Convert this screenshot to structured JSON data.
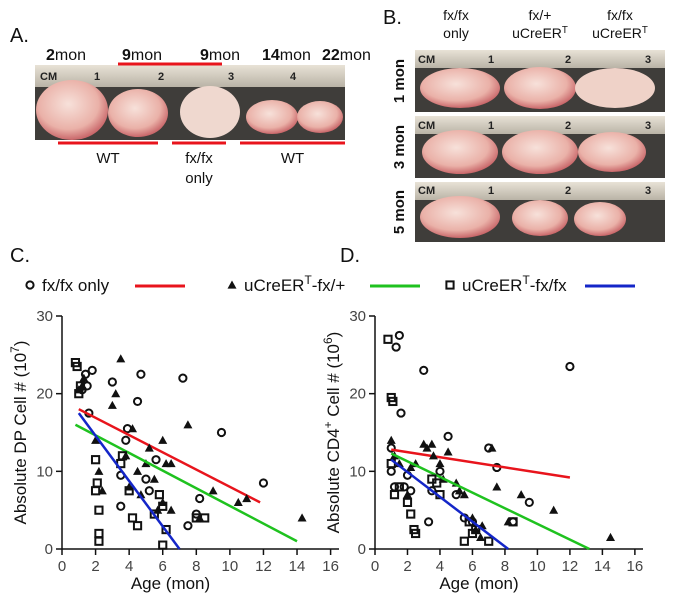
{
  "panel_a": {
    "label": "A.",
    "ages": [
      {
        "num": "2",
        "unit": "mon"
      },
      {
        "num": "9",
        "unit": "mon"
      },
      {
        "num": "9",
        "unit": "mon"
      },
      {
        "num": "14",
        "unit": "mon"
      },
      {
        "num": "22",
        "unit": "mon"
      }
    ],
    "ruler": [
      "CM",
      "1",
      "2",
      "3",
      "4"
    ],
    "groups": [
      {
        "lines": [
          "WT"
        ]
      },
      {
        "lines": [
          "fx/fx",
          "only"
        ]
      },
      {
        "lines": [
          "WT"
        ]
      }
    ]
  },
  "panel_b": {
    "label": "B.",
    "columns": [
      {
        "line1": "fx/fx",
        "line2": "only"
      },
      {
        "line1": "fx/+",
        "line2": "uCreER",
        "sup": "T"
      },
      {
        "line1": "fx/fx",
        "line2": "uCreER",
        "sup": "T"
      }
    ],
    "rows": [
      {
        "label": "1 mon",
        "ruler": [
          "CM",
          "1",
          "2",
          "3"
        ]
      },
      {
        "label": "3 mon",
        "ruler": [
          "CM",
          "1",
          "2",
          "3"
        ]
      },
      {
        "label": "5 mon",
        "ruler": [
          "CM",
          "1",
          "2",
          "3"
        ]
      }
    ]
  },
  "chart_data": [
    {
      "type": "scatter",
      "panel_label": "C.",
      "xlabel": "Age (mon)",
      "ylabel_parts": [
        {
          "text": "Absolute DP Cell # (10"
        },
        {
          "text": "7",
          "sup": true
        },
        {
          "text": ")"
        }
      ],
      "xlim": [
        0,
        16.5
      ],
      "ylim": [
        0,
        30
      ],
      "xticks": [
        0,
        2,
        4,
        6,
        8,
        10,
        12,
        14,
        16
      ],
      "yticks": [
        0,
        10,
        20,
        30
      ],
      "series": [
        {
          "name_parts": [
            {
              "text": "fx/fx only"
            }
          ],
          "marker": "circle",
          "color": "#e8141c",
          "x": [
            1.2,
            1.4,
            1.5,
            1.6,
            1.8,
            3,
            3.5,
            3.5,
            3.8,
            3.9,
            4.5,
            4.7,
            5,
            5.2,
            5.6,
            7.2,
            7.5,
            8,
            8.2,
            9.5,
            12
          ],
          "values": [
            20.5,
            22.5,
            21,
            17.5,
            23,
            21.5,
            9.5,
            5.5,
            14,
            15.5,
            19,
            22.5,
            9,
            7.5,
            11.5,
            22,
            3,
            4.5,
            6.5,
            15,
            8.5
          ],
          "fit": {
            "x": [
              1,
              11.8
            ],
            "y": [
              18,
              6
            ]
          }
        },
        {
          "name_parts": [
            {
              "text": "uCreER"
            },
            {
              "text": "T",
              "sup": true
            },
            {
              "text": "-fx/+"
            }
          ],
          "marker": "triangle",
          "color": "#1fc21f",
          "x": [
            1,
            1.2,
            1.3,
            2,
            2.2,
            2.4,
            3,
            3.2,
            3.5,
            3.8,
            4,
            4.2,
            4.5,
            4.7,
            5,
            5.2,
            5.5,
            5.7,
            6,
            6,
            6.2,
            6.5,
            6.5,
            7.5,
            8.2,
            9,
            10.5,
            11,
            14.3
          ],
          "values": [
            20.5,
            21,
            22,
            14,
            10,
            7.5,
            18.5,
            20,
            24.5,
            12,
            8,
            15.5,
            10,
            7,
            11,
            13,
            9,
            5,
            14,
            6,
            11,
            5,
            11,
            16,
            4,
            7.5,
            6,
            6.5,
            4
          ],
          "fit": {
            "x": [
              0.8,
              14
            ],
            "y": [
              16,
              1
            ]
          }
        },
        {
          "name_parts": [
            {
              "text": "uCreER"
            },
            {
              "text": "T",
              "sup": true
            },
            {
              "text": "-fx/fx"
            }
          ],
          "marker": "square",
          "color": "#1426c8",
          "x": [
            0.8,
            0.9,
            1,
            1.1,
            2,
            2,
            2.1,
            2.2,
            2.2,
            2.2,
            3.5,
            3.6,
            4,
            4.2,
            4.5,
            5.5,
            5.8,
            6,
            6,
            6.2,
            8,
            8.5
          ],
          "values": [
            24,
            23.5,
            20,
            21,
            7.5,
            11.5,
            8.5,
            5,
            2,
            1,
            11,
            12,
            7.5,
            4,
            3,
            4.5,
            7,
            5.5,
            0.5,
            2.5,
            4,
            4
          ],
          "fit": {
            "x": [
              1,
              7
            ],
            "y": [
              17.5,
              0
            ]
          }
        }
      ]
    },
    {
      "type": "scatter",
      "panel_label": "D.",
      "xlabel": "Age (mon)",
      "ylabel_parts": [
        {
          "text": "Absolute CD4"
        },
        {
          "text": "+",
          "sup": true
        },
        {
          "text": " Cell # (10"
        },
        {
          "text": "6",
          "sup": true
        },
        {
          "text": ")"
        }
      ],
      "xlim": [
        0,
        16.5
      ],
      "ylim": [
        0,
        30
      ],
      "xticks": [
        0,
        2,
        4,
        6,
        8,
        10,
        12,
        14,
        16
      ],
      "yticks": [
        0,
        10,
        20,
        30
      ],
      "series": [
        {
          "marker": "circle",
          "color": "#e8141c",
          "x": [
            1,
            1,
            1.2,
            1.3,
            1.5,
            1.6,
            1.8,
            2,
            2.2,
            3,
            3.3,
            3.5,
            4,
            4.5,
            5,
            5.5,
            6,
            7,
            7.5,
            8.5,
            9.5,
            12
          ],
          "values": [
            13,
            10,
            8,
            26,
            27.5,
            17.5,
            8,
            9.5,
            7.5,
            23,
            3.5,
            7.5,
            10,
            14.5,
            7,
            4,
            3.5,
            13,
            10.5,
            3.5,
            6,
            23.5
          ],
          "fit": {
            "x": [
              1,
              12
            ],
            "y": [
              12.8,
              9.2
            ]
          }
        },
        {
          "marker": "triangle",
          "color": "#1fc21f",
          "x": [
            1,
            1.2,
            1.5,
            2,
            2.2,
            2.5,
            3,
            3.2,
            3.5,
            3.6,
            4,
            4.2,
            4.5,
            5,
            5.2,
            5.5,
            6,
            6.2,
            6.5,
            6.6,
            7.2,
            7.5,
            8.2,
            9,
            11,
            14.5
          ],
          "values": [
            14,
            12,
            11,
            7,
            10.5,
            11,
            13.5,
            13,
            13.5,
            12,
            11,
            9,
            12.5,
            8.5,
            7.5,
            7,
            4,
            2.5,
            1.5,
            3,
            13,
            8,
            3.5,
            7,
            5,
            1.5
          ],
          "fit": {
            "x": [
              1,
              13.2
            ],
            "y": [
              12.3,
              0
            ]
          }
        },
        {
          "marker": "square",
          "color": "#1426c8",
          "x": [
            0.8,
            1,
            1.1,
            1,
            1.2,
            1.5,
            2,
            2.2,
            2.4,
            2.5,
            3.5,
            3.8,
            4,
            5.5,
            5.8,
            6,
            6.2,
            7,
            8.5
          ],
          "values": [
            27,
            19.5,
            19,
            11,
            7,
            8,
            6,
            4.5,
            2.5,
            2,
            9,
            8.5,
            7,
            1,
            3.5,
            2,
            2.5,
            1,
            3.5
          ],
          "fit": {
            "x": [
              1,
              8.2
            ],
            "y": [
              11.5,
              0
            ]
          }
        }
      ]
    }
  ]
}
